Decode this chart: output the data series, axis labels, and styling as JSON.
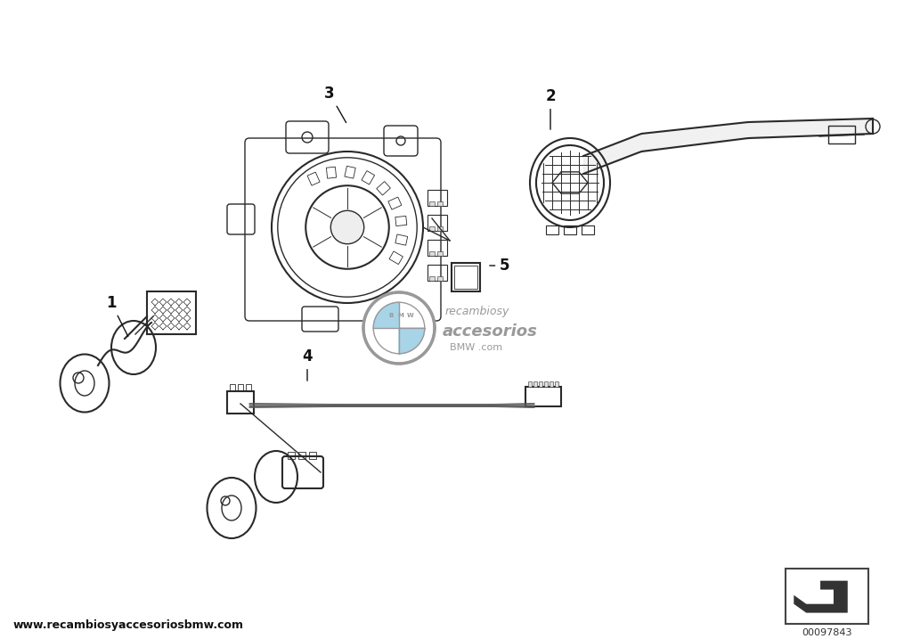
{
  "bg_color": "#ffffff",
  "fig_width": 10.24,
  "fig_height": 7.17,
  "dpi": 100,
  "website_text": "www.recambiosyaccesoriosbmw.com",
  "part_number": "00097843",
  "brand_text_recambios": "recambios",
  "brand_text_y": "y",
  "brand_text_accesorios": "accesorios",
  "brand_text_bmw_com": "BMW .com",
  "line_color": "#2a2a2a",
  "gray_color": "#999999",
  "light_gray": "#cccccc",
  "light_blue": "#a8d4e8",
  "label_color": "#111111"
}
